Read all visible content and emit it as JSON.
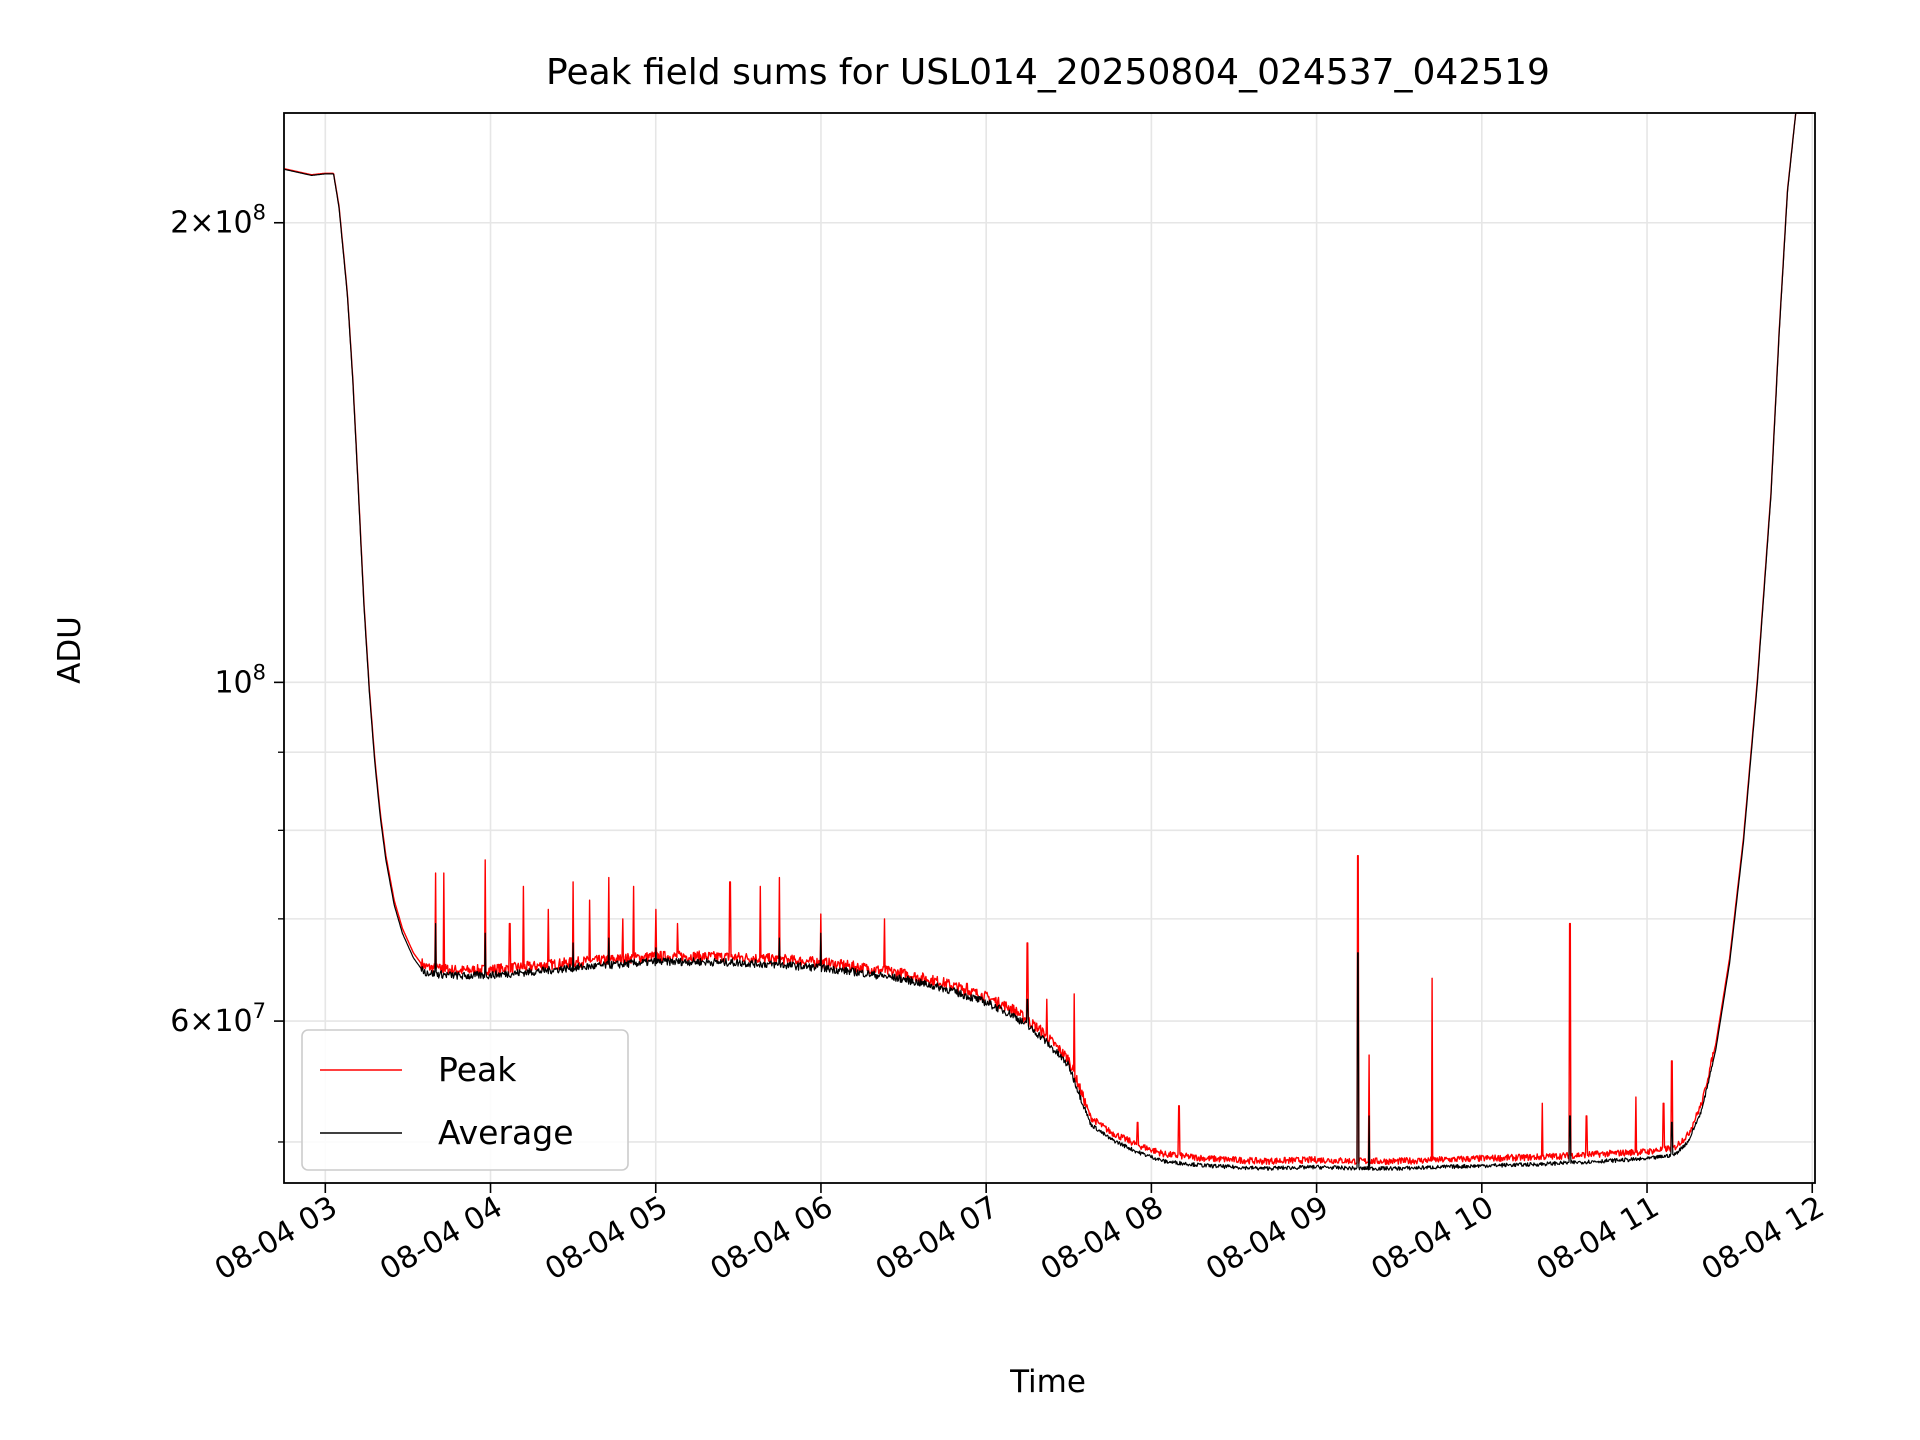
{
  "chart_data": {
    "type": "line",
    "title": "Peak field sums for USL014_20250804_024537_042519",
    "xlabel": "Time",
    "ylabel": "ADU",
    "x_unit": "hours (2025-08-04, local)",
    "x_range": [
      "2025-08-04 02:45",
      "2025-08-04 12:01"
    ],
    "y_scale": "log",
    "y_range": [
      47000000,
      236000000
    ],
    "grid": true,
    "legend_position": "lower-left",
    "x_ticks": [
      "08-04 03",
      "08-04 04",
      "08-04 05",
      "08-04 06",
      "08-04 07",
      "08-04 08",
      "08-04 09",
      "08-04 10",
      "08-04 11",
      "08-04 12"
    ],
    "y_major_ticks": [
      {
        "value": 200000000,
        "base": "2",
        "exp": "8",
        "times": true
      },
      {
        "value": 100000000,
        "base": "10",
        "exp": "8",
        "times": false
      },
      {
        "value": 60000000,
        "base": "6",
        "exp": "7",
        "times": true
      }
    ],
    "y_minor_ticks": [
      50000000,
      70000000,
      80000000,
      90000000
    ],
    "series": [
      {
        "name": "Peak",
        "color": "#ff0000",
        "points": [
          [
            "02:45",
            217000000
          ],
          [
            "02:50",
            216000000
          ],
          [
            "02:55",
            215000000
          ],
          [
            "03:00",
            215500000
          ],
          [
            "03:03",
            215500000
          ],
          [
            "03:05",
            205000000
          ],
          [
            "03:08",
            180000000
          ],
          [
            "03:10",
            158000000
          ],
          [
            "03:12",
            134000000
          ],
          [
            "03:14",
            113000000
          ],
          [
            "03:16",
            99000000
          ],
          [
            "03:18",
            89000000
          ],
          [
            "03:20",
            82000000
          ],
          [
            "03:22",
            77000000
          ],
          [
            "03:25",
            72000000
          ],
          [
            "03:28",
            69000000
          ],
          [
            "03:32",
            66500000
          ],
          [
            "03:36",
            65000000
          ],
          [
            "03:40",
            64800000
          ],
          [
            "03:45",
            64700000
          ],
          [
            "03:50",
            64600000
          ],
          [
            "04:00",
            64700000
          ],
          [
            "04:15",
            65000000
          ],
          [
            "04:30",
            65400000
          ],
          [
            "04:45",
            65700000
          ],
          [
            "05:00",
            66000000
          ],
          [
            "05:15",
            66000000
          ],
          [
            "05:30",
            65900000
          ],
          [
            "05:45",
            65700000
          ],
          [
            "06:00",
            65400000
          ],
          [
            "06:15",
            64900000
          ],
          [
            "06:30",
            64300000
          ],
          [
            "06:45",
            63400000
          ],
          [
            "07:00",
            62100000
          ],
          [
            "07:10",
            60900000
          ],
          [
            "07:20",
            59000000
          ],
          [
            "07:30",
            56500000
          ],
          [
            "07:35",
            53500000
          ],
          [
            "07:38",
            51800000
          ],
          [
            "07:45",
            50700000
          ],
          [
            "07:55",
            49700000
          ],
          [
            "08:05",
            49000000
          ],
          [
            "08:20",
            48700000
          ],
          [
            "08:40",
            48500000
          ],
          [
            "09:00",
            48600000
          ],
          [
            "09:15",
            48500000
          ],
          [
            "09:30",
            48500000
          ],
          [
            "09:45",
            48600000
          ],
          [
            "10:00",
            48700000
          ],
          [
            "10:20",
            48800000
          ],
          [
            "10:40",
            49000000
          ],
          [
            "11:00",
            49200000
          ],
          [
            "11:10",
            49500000
          ],
          [
            "11:15",
            50500000
          ],
          [
            "11:20",
            53000000
          ],
          [
            "11:25",
            58000000
          ],
          [
            "11:30",
            66000000
          ],
          [
            "11:35",
            79000000
          ],
          [
            "11:40",
            100000000
          ],
          [
            "11:45",
            133000000
          ],
          [
            "11:48",
            170000000
          ],
          [
            "11:51",
            210000000
          ],
          [
            "11:54",
            236000000
          ],
          [
            "12:00",
            236000000
          ]
        ],
        "spikes": [
          [
            "03:40",
            75000000
          ],
          [
            "03:43",
            75000000
          ],
          [
            "03:58",
            76500000
          ],
          [
            "04:07",
            69500000
          ],
          [
            "04:12",
            73500000
          ],
          [
            "04:21",
            71000000
          ],
          [
            "04:30",
            74000000
          ],
          [
            "04:36",
            72000000
          ],
          [
            "04:43",
            74500000
          ],
          [
            "04:48",
            70000000
          ],
          [
            "04:52",
            73500000
          ],
          [
            "05:00",
            71000000
          ],
          [
            "05:08",
            69500000
          ],
          [
            "05:27",
            74000000
          ],
          [
            "05:38",
            73500000
          ],
          [
            "05:45",
            74500000
          ],
          [
            "06:00",
            70500000
          ],
          [
            "06:23",
            70000000
          ],
          [
            "06:53",
            63500000
          ],
          [
            "07:15",
            67500000
          ],
          [
            "07:22",
            62000000
          ],
          [
            "07:32",
            62500000
          ],
          [
            "07:55",
            51500000
          ],
          [
            "08:10",
            52800000
          ],
          [
            "08:28",
            48500000
          ],
          [
            "09:15",
            77000000
          ],
          [
            "09:19",
            57000000
          ],
          [
            "09:42",
            64000000
          ],
          [
            "10:22",
            53000000
          ],
          [
            "10:32",
            69500000
          ],
          [
            "10:38",
            52000000
          ],
          [
            "10:56",
            53500000
          ],
          [
            "11:06",
            53000000
          ],
          [
            "11:09",
            56500000
          ]
        ]
      },
      {
        "name": "Average",
        "color": "#000000",
        "points": [
          [
            "02:45",
            216800000
          ],
          [
            "02:50",
            215800000
          ],
          [
            "02:55",
            214800000
          ],
          [
            "03:00",
            215300000
          ],
          [
            "03:03",
            215300000
          ],
          [
            "03:05",
            204500000
          ],
          [
            "03:08",
            179500000
          ],
          [
            "03:10",
            157500000
          ],
          [
            "03:12",
            133500000
          ],
          [
            "03:14",
            112500000
          ],
          [
            "03:16",
            98500000
          ],
          [
            "03:18",
            88500000
          ],
          [
            "03:20",
            81500000
          ],
          [
            "03:22",
            76500000
          ],
          [
            "03:25",
            71500000
          ],
          [
            "03:28",
            68500000
          ],
          [
            "03:32",
            66000000
          ],
          [
            "03:36",
            64500000
          ],
          [
            "03:40",
            64300000
          ],
          [
            "03:45",
            64200000
          ],
          [
            "03:50",
            64100000
          ],
          [
            "04:00",
            64200000
          ],
          [
            "04:15",
            64500000
          ],
          [
            "04:30",
            64900000
          ],
          [
            "04:45",
            65200000
          ],
          [
            "05:00",
            65500000
          ],
          [
            "05:15",
            65500000
          ],
          [
            "05:30",
            65400000
          ],
          [
            "05:45",
            65200000
          ],
          [
            "06:00",
            64900000
          ],
          [
            "06:15",
            64400000
          ],
          [
            "06:30",
            63800000
          ],
          [
            "06:45",
            62900000
          ],
          [
            "07:00",
            61600000
          ],
          [
            "07:10",
            60400000
          ],
          [
            "07:20",
            58500000
          ],
          [
            "07:30",
            56000000
          ],
          [
            "07:35",
            53000000
          ],
          [
            "07:38",
            51300000
          ],
          [
            "07:45",
            50200000
          ],
          [
            "07:55",
            49200000
          ],
          [
            "08:05",
            48500000
          ],
          [
            "08:20",
            48200000
          ],
          [
            "08:40",
            48000000
          ],
          [
            "09:00",
            48100000
          ],
          [
            "09:15",
            48000000
          ],
          [
            "09:30",
            48000000
          ],
          [
            "09:45",
            48100000
          ],
          [
            "10:00",
            48200000
          ],
          [
            "10:20",
            48300000
          ],
          [
            "10:40",
            48500000
          ],
          [
            "11:00",
            48700000
          ],
          [
            "11:10",
            49000000
          ],
          [
            "11:15",
            50000000
          ],
          [
            "11:20",
            52500000
          ],
          [
            "11:25",
            57500000
          ],
          [
            "11:30",
            65500000
          ],
          [
            "11:35",
            78500000
          ],
          [
            "11:40",
            99500000
          ],
          [
            "11:45",
            132500000
          ],
          [
            "11:48",
            169500000
          ],
          [
            "11:51",
            209500000
          ],
          [
            "11:54",
            236000000
          ],
          [
            "12:00",
            236000000
          ]
        ],
        "spikes": [
          [
            "03:40",
            69500000
          ],
          [
            "03:58",
            68500000
          ],
          [
            "04:30",
            67500000
          ],
          [
            "04:43",
            68000000
          ],
          [
            "05:00",
            67000000
          ],
          [
            "05:45",
            68000000
          ],
          [
            "06:00",
            68500000
          ],
          [
            "07:15",
            62000000
          ],
          [
            "09:15",
            66500000
          ],
          [
            "09:19",
            52000000
          ],
          [
            "10:32",
            52000000
          ],
          [
            "11:09",
            51500000
          ]
        ]
      }
    ],
    "legend": [
      {
        "label": "Peak",
        "color": "#ff0000"
      },
      {
        "label": "Average",
        "color": "#000000"
      }
    ]
  }
}
